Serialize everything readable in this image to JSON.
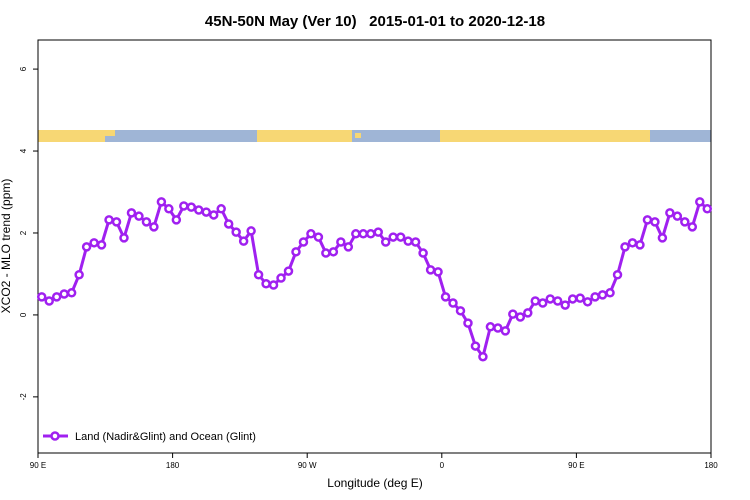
{
  "chart_data": {
    "type": "line",
    "title": "45N-50N May (Ver 10)   2015-01-01 to 2020-12-18",
    "xlabel": "Longitude (deg E)",
    "ylabel": "XCO2 - MLO trend (ppm)",
    "x": [
      92.5,
      97.5,
      102.5,
      107.5,
      112.5,
      117.5,
      122.5,
      127.5,
      132.5,
      137.5,
      142.5,
      147.5,
      152.5,
      157.5,
      162.5,
      167.5,
      172.5,
      177.5,
      182.5,
      187.5,
      192.5,
      197.5,
      202.5,
      207.5,
      212.5,
      217.5,
      222.5,
      227.5,
      232.5,
      237.5,
      242.5,
      247.5,
      252.5,
      257.5,
      262.5,
      267.5,
      272.5,
      277.5,
      282.5,
      287.5,
      292.5,
      297.5,
      302.5,
      307.5,
      312.5,
      317.5,
      322.5,
      327.5,
      332.5,
      337.5,
      342.5,
      347.5,
      352.5,
      357.5,
      362.5,
      367.5,
      372.5,
      377.5,
      382.5,
      387.5,
      392.5,
      397.5,
      402.5,
      407.5,
      412.5,
      417.5,
      422.5,
      427.5,
      432.5,
      437.5,
      442.5,
      447.5,
      452.5,
      457.5,
      462.5,
      467.5,
      472.5,
      477.5,
      482.5,
      487.5,
      492.5,
      497.5,
      502.5,
      507.5,
      512.5,
      517.5,
      522.5,
      527.5,
      532.5,
      537.5
    ],
    "series": [
      {
        "name": "Land (Nadir&Glint) and Ocean (Glint)",
        "color": "#a020f0",
        "values": [
          0.44,
          0.34,
          0.44,
          0.51,
          0.54,
          0.98,
          1.66,
          1.76,
          1.71,
          2.32,
          2.27,
          1.88,
          2.49,
          2.41,
          2.27,
          2.15,
          2.76,
          2.59,
          2.32,
          2.66,
          2.63,
          2.56,
          2.51,
          2.44,
          2.59,
          2.22,
          2.02,
          1.8,
          2.05,
          0.98,
          0.76,
          0.73,
          0.9,
          1.07,
          1.54,
          1.78,
          1.98,
          1.9,
          1.51,
          1.54,
          1.78,
          1.66,
          1.98,
          1.98,
          1.98,
          2.02,
          1.78,
          1.9,
          1.9,
          1.8,
          1.78,
          1.51,
          1.1,
          1.05,
          0.44,
          0.29,
          0.1,
          -0.2,
          -0.76,
          -1.02,
          -0.29,
          -0.32,
          -0.39,
          0.02,
          -0.05,
          0.05,
          0.34,
          0.29,
          0.39,
          0.34,
          0.24,
          0.39,
          0.41,
          0.32,
          0.44,
          0.49,
          0.54,
          0.98,
          1.66,
          1.76,
          1.71,
          2.32,
          2.27,
          1.88,
          2.49,
          2.41,
          2.27,
          2.15,
          2.76,
          2.59
        ]
      }
    ],
    "xlim": [
      90,
      540
    ],
    "xticks": [
      {
        "value": 90,
        "label": "90 E"
      },
      {
        "value": 180,
        "label": "180"
      },
      {
        "value": 270,
        "label": "90 W"
      },
      {
        "value": 360,
        "label": "0"
      },
      {
        "value": 450,
        "label": "90 E"
      },
      {
        "value": 540,
        "label": "180"
      }
    ],
    "ylim": [
      -3.37,
      6.71
    ],
    "yticks": [
      -2,
      0,
      2,
      4,
      6
    ],
    "legend": "bottom-left"
  }
}
